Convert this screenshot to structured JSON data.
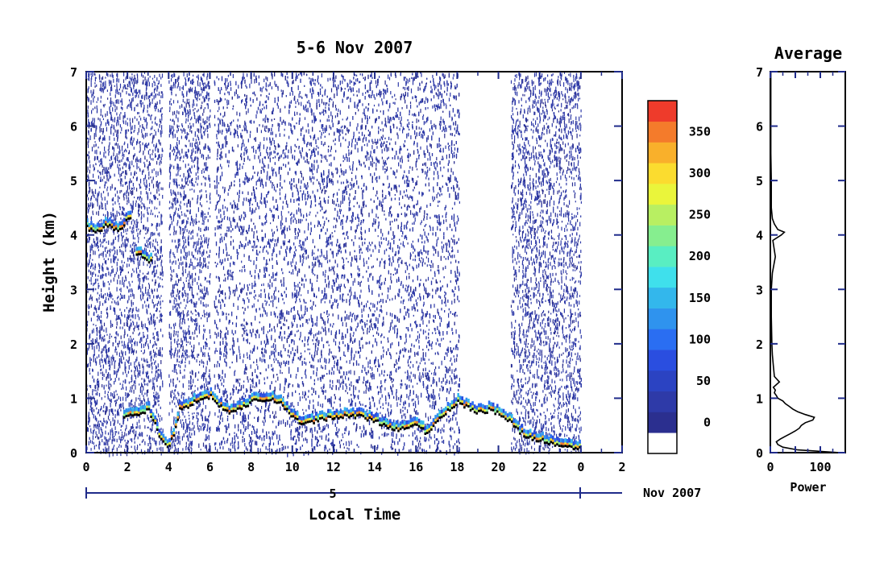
{
  "chart_data": [
    {
      "type": "heatmap",
      "title": "5-6 Nov 2007",
      "xlabel": "Local Time",
      "ylabel": "Height (km)",
      "xlim": [
        0,
        26
      ],
      "ylim": [
        0,
        7
      ],
      "x_ticks": [
        "0",
        "2",
        "4",
        "6",
        "8",
        "10",
        "12",
        "14",
        "16",
        "18",
        "20",
        "22",
        "0",
        "2"
      ],
      "y_ticks": [
        "0",
        "1",
        "2",
        "3",
        "4",
        "5",
        "6",
        "7"
      ],
      "date_axis": {
        "day_label": "5",
        "month_label": "Nov 2007",
        "day_span_hours": [
          0,
          24
        ]
      },
      "colorbar": {
        "ticks": [
          "0",
          "50",
          "100",
          "150",
          "200",
          "250",
          "300",
          "350"
        ],
        "levels": [
          0,
          25,
          50,
          75,
          100,
          125,
          150,
          175,
          200,
          225,
          250,
          275,
          300,
          325,
          350,
          375
        ],
        "colors": [
          "#2b2f8f",
          "#2e3aa8",
          "#2b43c2",
          "#2a4ee0",
          "#2a6ef2",
          "#2f93ee",
          "#33b7ec",
          "#3fe0ec",
          "#59eec2",
          "#86ee8f",
          "#b8ef62",
          "#eaf53b",
          "#fbdc2f",
          "#f9b02b",
          "#f47b2b",
          "#ee3b2b"
        ]
      },
      "data_coverage_hours": [
        [
          0,
          3.7
        ],
        [
          4.0,
          6.0
        ],
        [
          6.2,
          18.1
        ],
        [
          20.6,
          24
        ]
      ],
      "cloud_layers": [
        {
          "name": "",
          "x": [
            0,
            0.5,
            1.0,
            1.5,
            2.0,
            2.2
          ],
          "y": [
            4.15,
            4.1,
            4.2,
            4.1,
            4.3,
            4.4
          ]
        },
        {
          "name": "",
          "x": [
            2.4,
            2.7,
            3.0,
            3.2
          ],
          "y": [
            3.7,
            3.6,
            3.55,
            3.5
          ]
        },
        {
          "name": "",
          "x": [
            1.8,
            2.2,
            2.6,
            3.0,
            3.3,
            3.6,
            3.9,
            4.2,
            4.5,
            5.0,
            5.5,
            6.0,
            6.5,
            7.0,
            7.5,
            8.0,
            8.5,
            9.0,
            9.5,
            10.0,
            10.5,
            11.0,
            11.5,
            12.0,
            12.5,
            13.0,
            13.5,
            14.0,
            14.5,
            15.0,
            15.5,
            16.0,
            16.5,
            17.0,
            17.5,
            18.0,
            18.5,
            19.0,
            19.5,
            20.0,
            20.5,
            21.0,
            21.5,
            22.0,
            22.5,
            23.0,
            23.5,
            24.0
          ],
          "y": [
            0.7,
            0.7,
            0.75,
            0.8,
            0.55,
            0.25,
            0.1,
            0.35,
            0.8,
            0.9,
            1.0,
            1.05,
            0.85,
            0.75,
            0.85,
            0.95,
            1.0,
            1.0,
            0.9,
            0.65,
            0.55,
            0.6,
            0.65,
            0.65,
            0.7,
            0.7,
            0.65,
            0.6,
            0.5,
            0.45,
            0.5,
            0.55,
            0.35,
            0.6,
            0.8,
            0.95,
            0.85,
            0.75,
            0.8,
            0.75,
            0.6,
            0.4,
            0.3,
            0.25,
            0.2,
            0.15,
            0.1,
            0.1
          ]
        }
      ]
    },
    {
      "type": "line",
      "title": "Average",
      "xlabel": "Power",
      "ylabel": "",
      "xlim": [
        0,
        150
      ],
      "ylim": [
        0,
        7
      ],
      "x_ticks": [
        "0",
        "100"
      ],
      "y_ticks": [
        "0",
        "1",
        "2",
        "3",
        "4",
        "5",
        "6",
        "7"
      ],
      "series": [
        {
          "name": "",
          "height_km": [
            0.0,
            0.05,
            0.1,
            0.15,
            0.2,
            0.25,
            0.3,
            0.35,
            0.4,
            0.45,
            0.5,
            0.55,
            0.6,
            0.65,
            0.7,
            0.75,
            0.8,
            0.85,
            0.9,
            0.95,
            1.0,
            1.05,
            1.1,
            1.15,
            1.2,
            1.3,
            1.4,
            1.6,
            1.8,
            2.0,
            2.5,
            3.0,
            3.3,
            3.6,
            3.9,
            4.0,
            4.05,
            4.1,
            4.2,
            4.3,
            4.5,
            5.0,
            5.5,
            6.0,
            6.5,
            7.0
          ],
          "power": [
            140,
            55,
            25,
            15,
            12,
            20,
            30,
            40,
            50,
            58,
            62,
            70,
            85,
            88,
            70,
            55,
            45,
            38,
            30,
            25,
            15,
            12,
            8,
            10,
            6,
            18,
            8,
            6,
            4,
            3,
            2,
            2,
            4,
            10,
            5,
            22,
            28,
            15,
            8,
            4,
            2,
            2,
            1,
            1,
            1,
            1
          ]
        }
      ]
    }
  ]
}
